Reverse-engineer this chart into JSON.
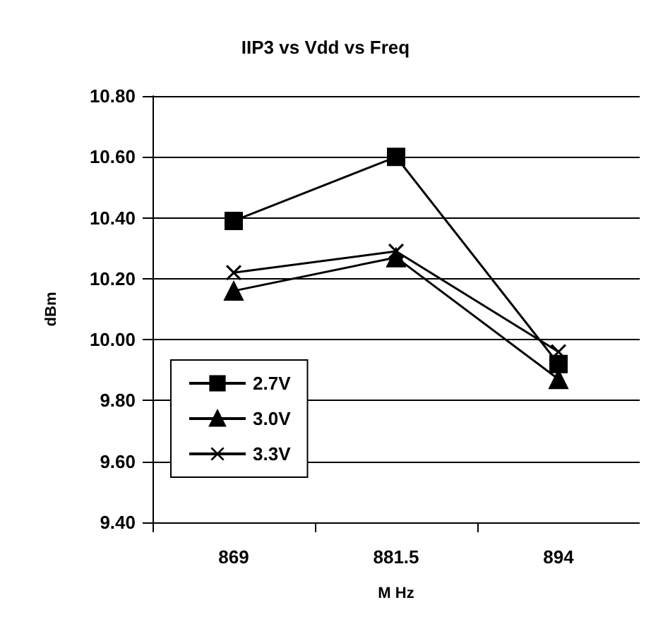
{
  "chart_data": {
    "type": "line",
    "title": "IIP3 vs Vdd vs Freq",
    "xlabel": "M Hz",
    "ylabel": "dBm",
    "categories": [
      "869",
      "881.5",
      "894"
    ],
    "series": [
      {
        "name": "2.7V",
        "color": "#000000",
        "marker": "square",
        "values": [
          10.39,
          10.6,
          9.92
        ]
      },
      {
        "name": "3.0V",
        "color": "#000000",
        "marker": "triangle",
        "values": [
          10.16,
          10.27,
          9.87
        ]
      },
      {
        "name": "3.3V",
        "color": "#000000",
        "marker": "cross",
        "values": [
          10.22,
          10.29,
          9.96
        ]
      }
    ],
    "ylim": [
      9.4,
      10.8
    ],
    "yticks": [
      {
        "value": 9.4,
        "label": "9.40"
      },
      {
        "value": 9.6,
        "label": "9.60"
      },
      {
        "value": 9.8,
        "label": "9.80"
      },
      {
        "value": 10.0,
        "label": "10.00"
      },
      {
        "value": 10.2,
        "label": "10.20"
      },
      {
        "value": 10.4,
        "label": "10.40"
      },
      {
        "value": 10.6,
        "label": "10.60"
      },
      {
        "value": 10.8,
        "label": "10.80"
      }
    ],
    "grid": "y",
    "legend": "bottom left",
    "line_style": "solid"
  }
}
